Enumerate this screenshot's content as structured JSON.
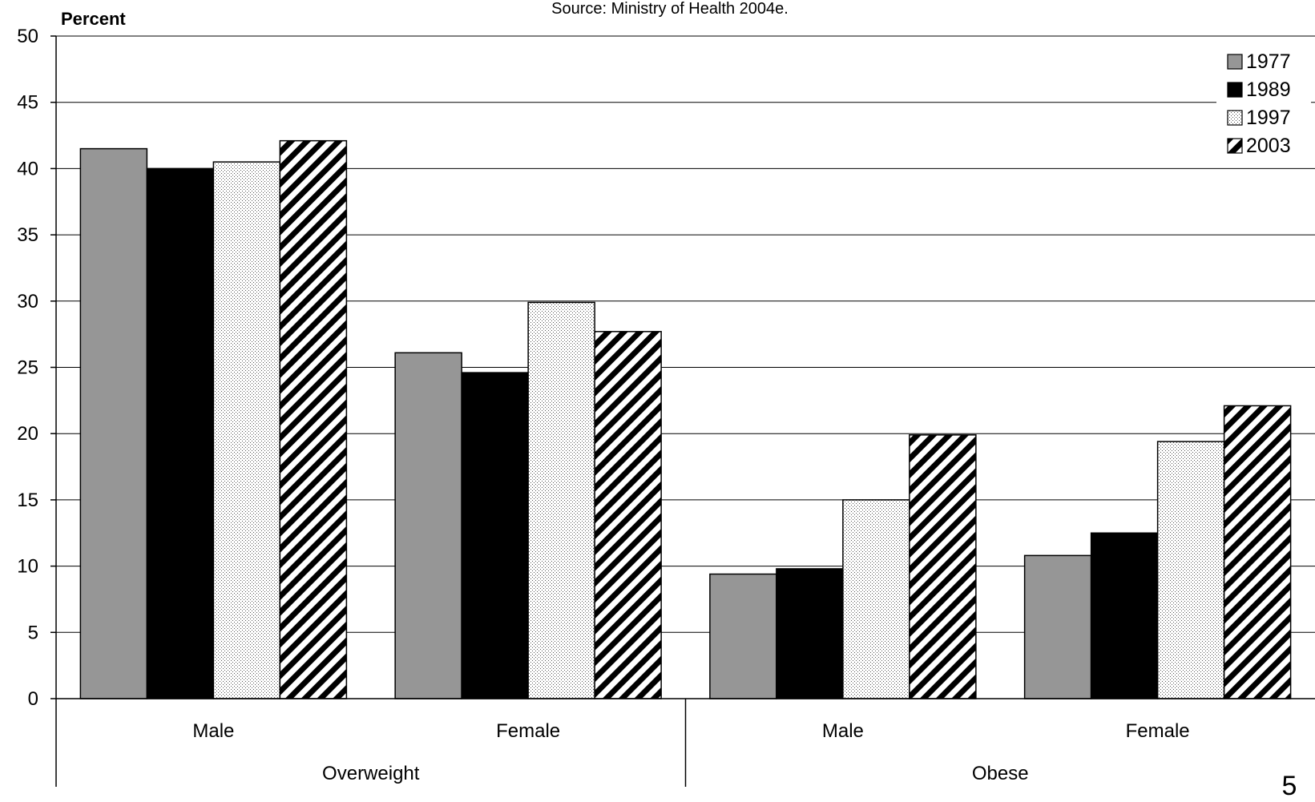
{
  "source_note": "Source: Ministry of Health 2004e.",
  "page_number": "5",
  "chart_data": {
    "type": "bar",
    "ylabel": "Percent",
    "ylim": [
      0,
      50
    ],
    "yticks": [
      0,
      5,
      10,
      15,
      20,
      25,
      30,
      35,
      40,
      45,
      50
    ],
    "grid": true,
    "legend_position": "top-right",
    "categories": [
      "Male",
      "Female",
      "Male",
      "Female"
    ],
    "groups": [
      {
        "label": "Overweight",
        "categories": [
          0,
          1
        ]
      },
      {
        "label": "Obese",
        "categories": [
          2,
          3
        ]
      }
    ],
    "series": [
      {
        "name": "1977",
        "values": [
          41.5,
          26.1,
          9.4,
          10.8
        ],
        "pattern": "solid-gray",
        "color": "#969696"
      },
      {
        "name": "1989",
        "values": [
          40.0,
          24.6,
          9.8,
          12.5
        ],
        "pattern": "solid-black",
        "color": "#000000"
      },
      {
        "name": "1997",
        "values": [
          40.5,
          29.9,
          15.0,
          19.4
        ],
        "pattern": "dots",
        "color": "#ffffff"
      },
      {
        "name": "2003",
        "values": [
          42.1,
          27.7,
          19.9,
          22.1
        ],
        "pattern": "diagonal-stripes",
        "color": "#ffffff"
      }
    ]
  }
}
